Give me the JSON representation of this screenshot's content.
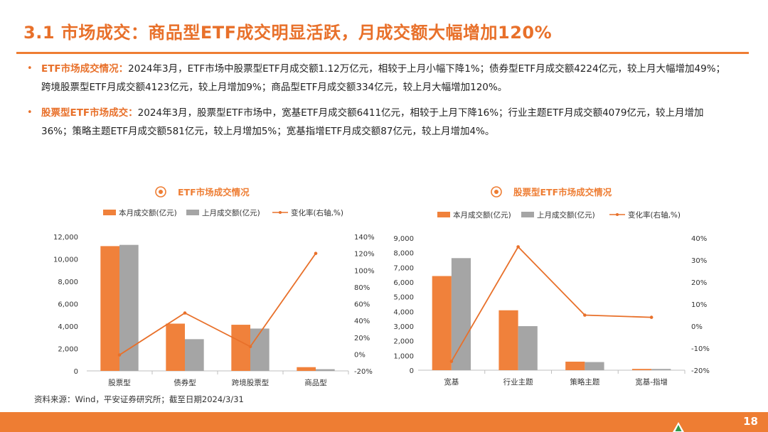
{
  "page": {
    "title": "3.1 市场成交：商品型ETF成交明显活跃，月成交额大幅增加120%",
    "page_number": "18",
    "source": "资料来源：Wind，平安证券研究所；截至日期2024/3/31"
  },
  "bullets": [
    {
      "lead": "ETF市场成交情况：",
      "text": "2024年3月，ETF市场中股票型ETF月成交额1.12万亿元，相较于上月小幅下降1%；债券型ETF月成交额4224亿元，较上月大幅增加49%；跨境股票型ETF月成交额4123亿元，较上月增加9%；商品型ETF月成交额334亿元，较上月大幅增加120%。"
    },
    {
      "lead": "股票型ETF市场成交：",
      "text": "2024年3月，股票型ETF市场中，宽基ETF月成交额6411亿元，相较于上月下降16%；行业主题ETF月成交额4079亿元，较上月增加36%；策略主题ETF月成交额581亿元，较上月增加5%；宽基指增ETF月成交额87亿元，较上月增加4%。"
    }
  ],
  "colors": {
    "accent": "#ee7d33",
    "current": "#f0813b",
    "previous": "#a5a5a5",
    "line": "#e8702a"
  },
  "chart_data": [
    {
      "type": "bar",
      "title": "ETF市场成交情况",
      "categories": [
        "股票型",
        "债券型",
        "跨境股票型",
        "商品型"
      ],
      "series": [
        {
          "name": "本月成交额(亿元)",
          "values": [
            11150,
            4224,
            4123,
            334
          ],
          "axis": "left"
        },
        {
          "name": "上月成交额(亿元)",
          "values": [
            11260,
            2835,
            3783,
            152
          ],
          "axis": "left"
        },
        {
          "name": "变化率(右轴,%)",
          "type": "line",
          "values": [
            -1,
            49,
            9,
            120
          ],
          "axis": "right"
        }
      ],
      "ylim": [
        0,
        12000
      ],
      "yticks": [
        0,
        2000,
        4000,
        6000,
        8000,
        10000,
        12000
      ],
      "yticklabels": [
        "0",
        "2,000",
        "4,000",
        "6,000",
        "8,000",
        "10,000",
        "12,000"
      ],
      "y2lim": [
        -20,
        140
      ],
      "y2ticks": [
        -20,
        0,
        20,
        40,
        60,
        80,
        100,
        120,
        140
      ],
      "y2ticklabels": [
        "-20%",
        "0%",
        "20%",
        "40%",
        "60%",
        "80%",
        "100%",
        "120%",
        "140%"
      ],
      "legend_position": "top"
    },
    {
      "type": "bar",
      "title": "股票型ETF市场成交情况",
      "categories": [
        "宽基",
        "行业主题",
        "策略主题",
        "宽基-指增"
      ],
      "series": [
        {
          "name": "本月成交额(亿元)",
          "values": [
            6411,
            4079,
            581,
            87
          ],
          "axis": "left"
        },
        {
          "name": "上月成交额(亿元)",
          "values": [
            7632,
            2999,
            553,
            84
          ],
          "axis": "left"
        },
        {
          "name": "变化率(右轴,%)",
          "type": "line",
          "values": [
            -16,
            36,
            5,
            4
          ],
          "axis": "right"
        }
      ],
      "ylim": [
        0,
        9000
      ],
      "yticks": [
        0,
        1000,
        2000,
        3000,
        4000,
        5000,
        6000,
        7000,
        8000,
        9000
      ],
      "yticklabels": [
        "0",
        "1,000",
        "2,000",
        "3,000",
        "4,000",
        "5,000",
        "6,000",
        "7,000",
        "8,000",
        "9,000"
      ],
      "y2lim": [
        -20,
        40
      ],
      "y2ticks": [
        -20,
        -10,
        0,
        10,
        20,
        30,
        40
      ],
      "y2ticklabels": [
        "-20%",
        "-10%",
        "0%",
        "10%",
        "20%",
        "30%",
        "40%"
      ],
      "legend_position": "top"
    }
  ]
}
